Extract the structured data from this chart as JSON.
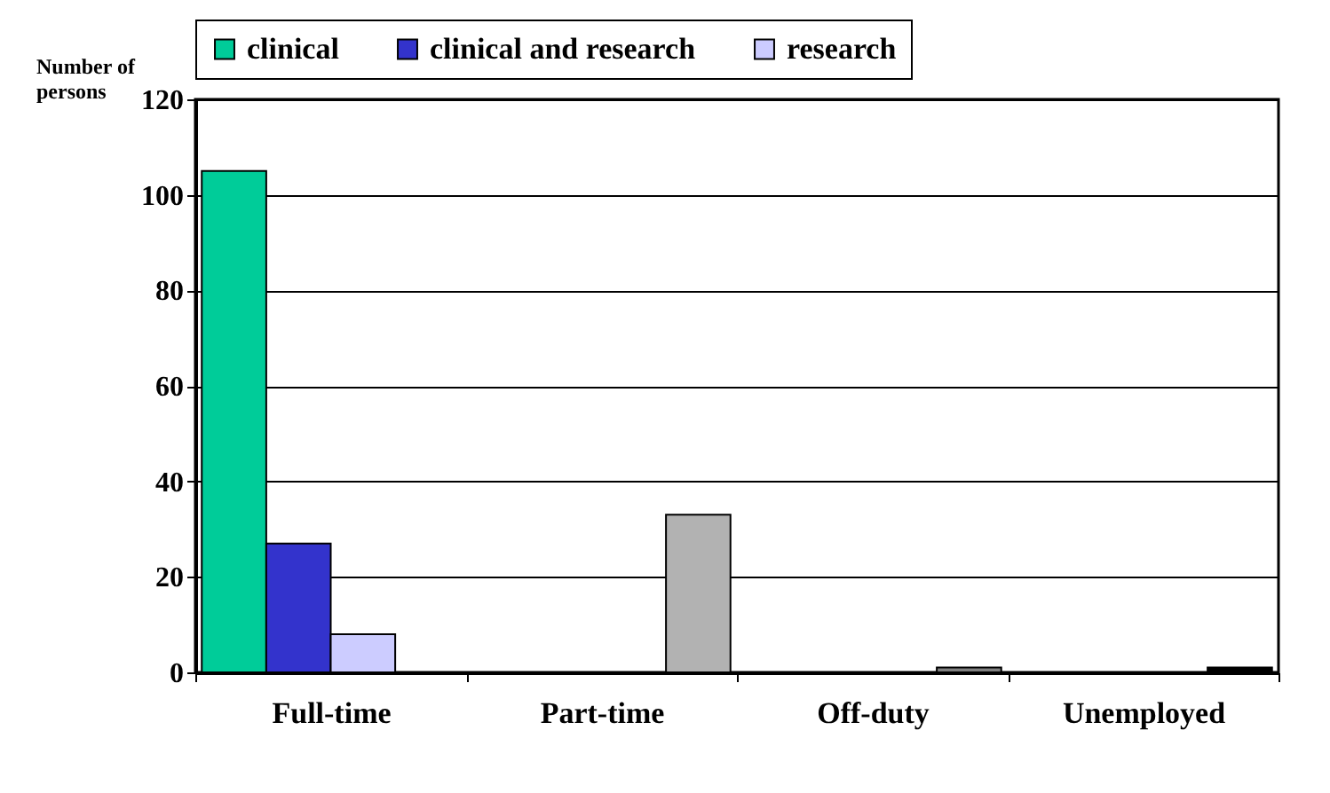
{
  "chart_data": {
    "type": "bar",
    "ylabel": "Number of persons",
    "categories": [
      "Full-time",
      "Part-time",
      "Off-duty",
      "Unemployed"
    ],
    "series": [
      {
        "name": "clinical",
        "color": "#00cc99",
        "values": [
          105,
          null,
          null,
          null
        ]
      },
      {
        "name": "clinical and research",
        "color": "#3333cc",
        "values": [
          27,
          null,
          null,
          null
        ]
      },
      {
        "name": "research",
        "color": "#ccccff",
        "values": [
          8,
          null,
          null,
          null
        ]
      },
      {
        "colors": [
          null,
          "#b2b2b2",
          "#808080",
          "#000000"
        ],
        "values": [
          null,
          33,
          1,
          1
        ]
      }
    ],
    "ylim": [
      0,
      120
    ],
    "yticks": [
      0,
      20,
      40,
      60,
      80,
      100,
      120
    ],
    "grid": "y",
    "legend": "top"
  }
}
